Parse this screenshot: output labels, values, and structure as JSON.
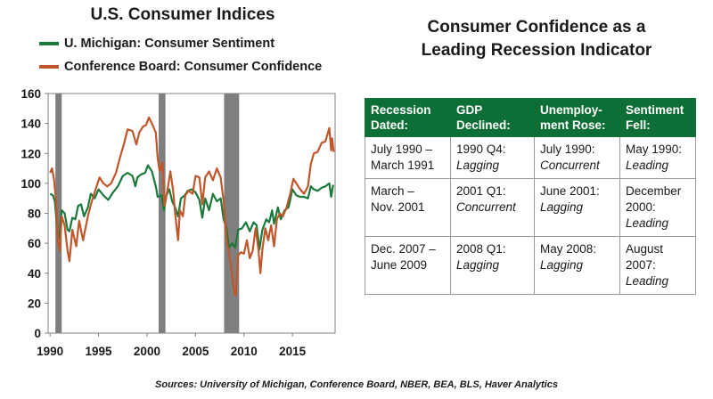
{
  "chart_data": {
    "type": "line",
    "title": "U.S. Consumer Indices",
    "xlim": [
      1989.8,
      2019.4
    ],
    "ylim": [
      0,
      160
    ],
    "x_ticks": [
      1990,
      1995,
      2000,
      2005,
      2010,
      2015
    ],
    "y_ticks": [
      0,
      20,
      40,
      60,
      80,
      100,
      120,
      140,
      160
    ],
    "grid": false,
    "legend_position": "top-left",
    "recessions": [
      [
        1990.55,
        1991.2
      ],
      [
        2001.2,
        2001.9
      ],
      [
        2007.95,
        2009.5
      ]
    ],
    "series": [
      {
        "name": "U. Michigan: Consumer Sentiment",
        "color": "#1a7a3c",
        "points": [
          [
            1990.0,
            93
          ],
          [
            1990.3,
            92
          ],
          [
            1990.5,
            88
          ],
          [
            1990.7,
            72
          ],
          [
            1990.85,
            63
          ],
          [
            1991.0,
            67
          ],
          [
            1991.2,
            82
          ],
          [
            1991.5,
            80
          ],
          [
            1991.8,
            69
          ],
          [
            1992.0,
            68
          ],
          [
            1992.3,
            77
          ],
          [
            1992.6,
            76
          ],
          [
            1992.9,
            85
          ],
          [
            1993.2,
            86
          ],
          [
            1993.5,
            78
          ],
          [
            1993.9,
            84
          ],
          [
            1994.2,
            93
          ],
          [
            1994.6,
            90
          ],
          [
            1995.0,
            96
          ],
          [
            1995.5,
            92
          ],
          [
            1996.0,
            89
          ],
          [
            1996.5,
            94
          ],
          [
            1997.0,
            98
          ],
          [
            1997.5,
            105
          ],
          [
            1998.0,
            107
          ],
          [
            1998.5,
            105
          ],
          [
            1998.8,
            98
          ],
          [
            1999.0,
            104
          ],
          [
            1999.4,
            106
          ],
          [
            1999.8,
            107
          ],
          [
            2000.1,
            112
          ],
          [
            2000.5,
            108
          ],
          [
            2000.9,
            98
          ],
          [
            2001.1,
            91
          ],
          [
            2001.5,
            92
          ],
          [
            2001.75,
            82
          ],
          [
            2002.0,
            92
          ],
          [
            2002.3,
            96
          ],
          [
            2002.6,
            88
          ],
          [
            2002.9,
            84
          ],
          [
            2003.2,
            78
          ],
          [
            2003.5,
            90
          ],
          [
            2003.9,
            92
          ],
          [
            2004.2,
            95
          ],
          [
            2004.6,
            96
          ],
          [
            2005.0,
            94
          ],
          [
            2005.4,
            89
          ],
          [
            2005.7,
            77
          ],
          [
            2006.0,
            90
          ],
          [
            2006.4,
            82
          ],
          [
            2006.8,
            93
          ],
          [
            2007.2,
            88
          ],
          [
            2007.6,
            90
          ],
          [
            2007.9,
            76
          ],
          [
            2008.2,
            70
          ],
          [
            2008.45,
            57
          ],
          [
            2008.8,
            60
          ],
          [
            2009.1,
            57
          ],
          [
            2009.4,
            69
          ],
          [
            2009.8,
            70
          ],
          [
            2010.2,
            74
          ],
          [
            2010.6,
            68
          ],
          [
            2011.0,
            74
          ],
          [
            2011.3,
            72
          ],
          [
            2011.6,
            56
          ],
          [
            2011.9,
            69
          ],
          [
            2012.3,
            76
          ],
          [
            2012.6,
            74
          ],
          [
            2012.9,
            82
          ],
          [
            2013.1,
            73
          ],
          [
            2013.5,
            84
          ],
          [
            2013.8,
            76
          ],
          [
            2014.2,
            82
          ],
          [
            2014.6,
            84
          ],
          [
            2015.0,
            96
          ],
          [
            2015.4,
            92
          ],
          [
            2015.8,
            91
          ],
          [
            2016.2,
            91
          ],
          [
            2016.6,
            90
          ],
          [
            2016.9,
            98
          ],
          [
            2017.2,
            96
          ],
          [
            2017.6,
            95
          ],
          [
            2018.0,
            97
          ],
          [
            2018.4,
            98
          ],
          [
            2018.8,
            100
          ],
          [
            2019.0,
            91
          ],
          [
            2019.2,
            99
          ]
        ]
      },
      {
        "name": "Conference Board: Consumer Confidence",
        "color": "#c0572b",
        "points": [
          [
            1990.0,
            107
          ],
          [
            1990.2,
            110
          ],
          [
            1990.4,
            103
          ],
          [
            1990.6,
            90
          ],
          [
            1990.8,
            62
          ],
          [
            1991.0,
            55
          ],
          [
            1991.2,
            78
          ],
          [
            1991.5,
            72
          ],
          [
            1991.8,
            55
          ],
          [
            1992.0,
            48
          ],
          [
            1992.3,
            69
          ],
          [
            1992.7,
            58
          ],
          [
            1993.0,
            75
          ],
          [
            1993.4,
            62
          ],
          [
            1993.9,
            78
          ],
          [
            1994.3,
            88
          ],
          [
            1994.8,
            98
          ],
          [
            1995.1,
            104
          ],
          [
            1995.5,
            100
          ],
          [
            1995.9,
            98
          ],
          [
            1996.3,
            100
          ],
          [
            1996.8,
            107
          ],
          [
            1997.2,
            117
          ],
          [
            1997.6,
            126
          ],
          [
            1998.0,
            136
          ],
          [
            1998.5,
            135
          ],
          [
            1998.9,
            126
          ],
          [
            1999.2,
            134
          ],
          [
            1999.6,
            138
          ],
          [
            1999.9,
            139
          ],
          [
            2000.2,
            144
          ],
          [
            2000.5,
            140
          ],
          [
            2000.9,
            134
          ],
          [
            2001.1,
            117
          ],
          [
            2001.3,
            108
          ],
          [
            2001.6,
            114
          ],
          [
            2001.8,
            85
          ],
          [
            2002.1,
            95
          ],
          [
            2002.4,
            108
          ],
          [
            2002.7,
            95
          ],
          [
            2002.9,
            80
          ],
          [
            2003.2,
            62
          ],
          [
            2003.4,
            82
          ],
          [
            2003.7,
            78
          ],
          [
            2003.95,
            92
          ],
          [
            2004.3,
            95
          ],
          [
            2004.7,
            93
          ],
          [
            2005.0,
            105
          ],
          [
            2005.4,
            104
          ],
          [
            2005.7,
            86
          ],
          [
            2006.0,
            104
          ],
          [
            2006.4,
            108
          ],
          [
            2006.8,
            102
          ],
          [
            2007.2,
            110
          ],
          [
            2007.6,
            104
          ],
          [
            2007.9,
            88
          ],
          [
            2008.2,
            62
          ],
          [
            2008.5,
            52
          ],
          [
            2008.8,
            38
          ],
          [
            2009.0,
            27
          ],
          [
            2009.15,
            25
          ],
          [
            2009.4,
            52
          ],
          [
            2009.7,
            54
          ],
          [
            2010.0,
            53
          ],
          [
            2010.3,
            62
          ],
          [
            2010.6,
            50
          ],
          [
            2010.9,
            55
          ],
          [
            2011.2,
            70
          ],
          [
            2011.5,
            55
          ],
          [
            2011.7,
            40
          ],
          [
            2011.9,
            56
          ],
          [
            2012.2,
            70
          ],
          [
            2012.5,
            62
          ],
          [
            2012.8,
            72
          ],
          [
            2013.1,
            58
          ],
          [
            2013.4,
            76
          ],
          [
            2013.7,
            80
          ],
          [
            2014.0,
            78
          ],
          [
            2014.4,
            84
          ],
          [
            2014.8,
            94
          ],
          [
            2015.1,
            103
          ],
          [
            2015.5,
            99
          ],
          [
            2015.8,
            96
          ],
          [
            2016.2,
            93
          ],
          [
            2016.6,
            98
          ],
          [
            2016.9,
            113
          ],
          [
            2017.2,
            120
          ],
          [
            2017.6,
            121
          ],
          [
            2018.0,
            127
          ],
          [
            2018.4,
            128
          ],
          [
            2018.8,
            137
          ],
          [
            2019.0,
            122
          ],
          [
            2019.1,
            130
          ],
          [
            2019.25,
            121
          ]
        ]
      }
    ]
  },
  "table_panel": {
    "title_lines": [
      "Consumer Confidence as a",
      "Leading Recession Indicator"
    ],
    "headers": [
      [
        "Recession",
        "Dated:"
      ],
      [
        "GDP",
        "Declined:"
      ],
      [
        "Unemploy-",
        "ment Rose:"
      ],
      [
        "Sentiment",
        "Fell:"
      ]
    ],
    "rows": [
      [
        {
          "lines": [
            "July 1990 –",
            "March 1991"
          ],
          "timing": ""
        },
        {
          "lines": [
            "1990 Q4:"
          ],
          "timing": "Lagging"
        },
        {
          "lines": [
            "July 1990:"
          ],
          "timing": "Concurrent"
        },
        {
          "lines": [
            "May 1990:"
          ],
          "timing": "Leading"
        }
      ],
      [
        {
          "lines": [
            "March –",
            "Nov. 2001"
          ],
          "timing": ""
        },
        {
          "lines": [
            "2001 Q1:"
          ],
          "timing": "Concurrent"
        },
        {
          "lines": [
            "June 2001:"
          ],
          "timing": "Lagging"
        },
        {
          "lines": [
            "December",
            "2000:"
          ],
          "timing": "Leading"
        }
      ],
      [
        {
          "lines": [
            "Dec. 2007 –",
            "June 2009"
          ],
          "timing": ""
        },
        {
          "lines": [
            "2008 Q1:"
          ],
          "timing": "Lagging"
        },
        {
          "lines": [
            "May 2008:"
          ],
          "timing": "Lagging"
        },
        {
          "lines": [
            "August",
            "2007:"
          ],
          "timing": "Leading"
        }
      ]
    ]
  },
  "source_note": "Sources: University of Michigan, Conference Board, NBER, BEA, BLS, Haver Analytics"
}
